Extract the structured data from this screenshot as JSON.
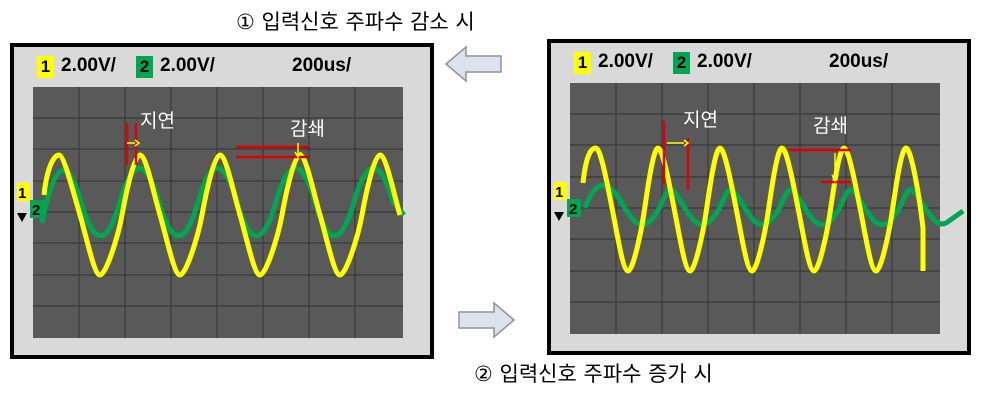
{
  "captions": {
    "decrease": "① 입력신호 주파수 감소 시",
    "increase": "② 입력신호 주파수 증가 시"
  },
  "scopes": [
    {
      "ch1_num": "1",
      "ch1_scale": "2.00V/",
      "ch2_num": "2",
      "ch2_scale": "2.00V/",
      "timebase": "200us/",
      "delay_label": "지연",
      "atten_label": "감쇄",
      "marker1": "1",
      "marker2": "2"
    },
    {
      "ch1_num": "1",
      "ch1_scale": "2.00V/",
      "ch2_num": "2",
      "ch2_scale": "2.00V/",
      "timebase": "200us/",
      "delay_label": "지연",
      "atten_label": "감쇄",
      "marker1": "1",
      "marker2": "2"
    }
  ],
  "colors": {
    "ch1": "#ffff00",
    "ch2": "#00a651",
    "marker": "#e00000",
    "grid": "#3a3a3a",
    "screen": "#595959"
  }
}
